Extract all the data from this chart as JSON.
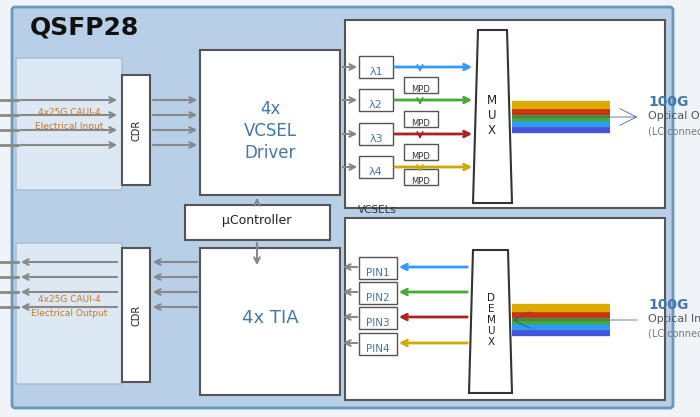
{
  "bg_color": "#b8cfe8",
  "white": "#ffffff",
  "gray_line": "#888888",
  "dark": "#333333",
  "blue_text": "#4477aa",
  "orange_text": "#cc7722",
  "ch_colors": [
    "#3399ff",
    "#44aa33",
    "#aa2222",
    "#ccaa00"
  ],
  "rainbow": [
    "#3355cc",
    "#3399ff",
    "#44aa33",
    "#cc4422",
    "#ccaa00"
  ],
  "outer_edge": "#6699bb",
  "box_edge": "#555555",
  "title": "QSFP28",
  "vcsel_label": "VCSELs",
  "lambda_labels": [
    "λ1",
    "λ2",
    "λ3",
    "λ4"
  ],
  "pin_labels": [
    "PIN1",
    "PIN2",
    "PIN3",
    "PIN4"
  ],
  "out_label1": "100G",
  "out_label2": "Optical Output",
  "out_label3": "(LC connector)",
  "in_label1": "100G",
  "in_label2": "Optical Input",
  "in_label3": "(LC connector)",
  "elec_in1": "4x25G CAUI-4",
  "elec_in2": "Electrical Input",
  "elec_out1": "4x25G CAUI-4",
  "elec_out2": "Electrical Output",
  "uctrl": "μController"
}
